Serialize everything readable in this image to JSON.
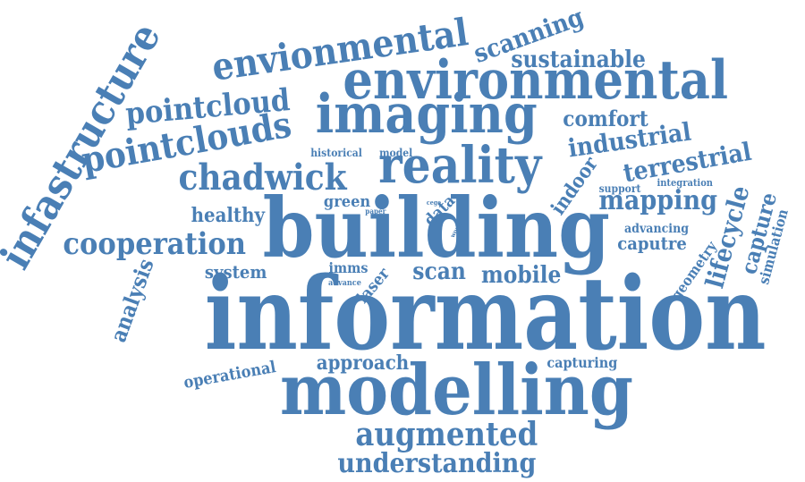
{
  "color": "#4a7fb5",
  "words": [
    {
      "text": "information"
    },
    {
      "text": "building"
    },
    {
      "text": "modelling"
    },
    {
      "text": "environmental"
    },
    {
      "text": "imaging"
    },
    {
      "text": "reality"
    },
    {
      "text": "envionmental"
    },
    {
      "text": "infastructure"
    },
    {
      "text": "pointclouds"
    },
    {
      "text": "pointcloud"
    },
    {
      "text": "chadwick"
    },
    {
      "text": "cooperation"
    },
    {
      "text": "augmented"
    },
    {
      "text": "understanding"
    },
    {
      "text": "scanning"
    },
    {
      "text": "sustainable"
    },
    {
      "text": "comfort"
    },
    {
      "text": "industrial"
    },
    {
      "text": "terrestrial"
    },
    {
      "text": "mapping"
    },
    {
      "text": "healthy"
    },
    {
      "text": "indoor"
    },
    {
      "text": "lifecycle"
    },
    {
      "text": "capture"
    },
    {
      "text": "caputre"
    },
    {
      "text": "advancing"
    },
    {
      "text": "analysis"
    },
    {
      "text": "system"
    },
    {
      "text": "scan"
    },
    {
      "text": "mobile"
    },
    {
      "text": "approach"
    },
    {
      "text": "operational"
    },
    {
      "text": "capturing"
    },
    {
      "text": "geometry"
    },
    {
      "text": "simulation"
    },
    {
      "text": "green"
    },
    {
      "text": "data"
    },
    {
      "text": "historical"
    },
    {
      "text": "model"
    },
    {
      "text": "support"
    },
    {
      "text": "integration"
    },
    {
      "text": "imms"
    },
    {
      "text": "laser"
    },
    {
      "text": "advance"
    },
    {
      "text": "paper"
    },
    {
      "text": "cege"
    },
    {
      "text": "world"
    }
  ]
}
